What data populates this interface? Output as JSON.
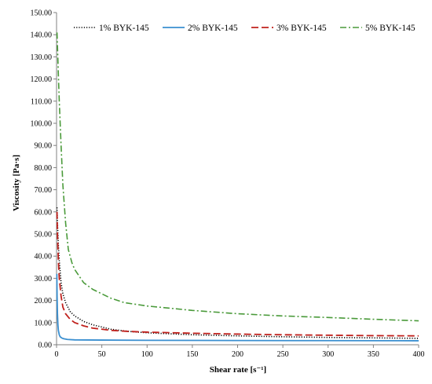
{
  "chart_data": {
    "type": "line",
    "title": "",
    "xlabel": "Shear rate [s⁻¹]",
    "ylabel": "Viscosity [Pa·s]",
    "xlim": [
      0,
      400
    ],
    "ylim": [
      0,
      150
    ],
    "x_ticks": [
      "0",
      "50",
      "100",
      "150",
      "200",
      "250",
      "300",
      "350",
      "400"
    ],
    "y_ticks": [
      "0.00",
      "10.00",
      "20.00",
      "30.00",
      "40.00",
      "50.00",
      "60.00",
      "70.00",
      "80.00",
      "90.00",
      "100.00",
      "110.00",
      "120.00",
      "130.00",
      "140.00",
      "150.00"
    ],
    "grid": false,
    "legend_position": "top",
    "series": [
      {
        "name": "1% BYK-145",
        "color": "#000000",
        "dash": "dotted",
        "points": [
          [
            0.5,
            62
          ],
          [
            1,
            55
          ],
          [
            2,
            45
          ],
          [
            3,
            38
          ],
          [
            5,
            28
          ],
          [
            7,
            23
          ],
          [
            10,
            19
          ],
          [
            15,
            15
          ],
          [
            20,
            13
          ],
          [
            30,
            10.5
          ],
          [
            40,
            9
          ],
          [
            50,
            8
          ],
          [
            60,
            7
          ],
          [
            80,
            6
          ],
          [
            100,
            5.4
          ],
          [
            150,
            4.5
          ],
          [
            200,
            4
          ],
          [
            250,
            3.6
          ],
          [
            300,
            3.3
          ],
          [
            350,
            3.1
          ],
          [
            400,
            2.9
          ]
        ]
      },
      {
        "name": "2% BYK-145",
        "color": "#3a8fd0",
        "dash": "solid",
        "points": [
          [
            0.3,
            32
          ],
          [
            0.6,
            22
          ],
          [
            1,
            14
          ],
          [
            1.5,
            9
          ],
          [
            2,
            6.5
          ],
          [
            3,
            4.5
          ],
          [
            4,
            3.6
          ],
          [
            6,
            3
          ],
          [
            8,
            2.7
          ],
          [
            12,
            2.4
          ],
          [
            20,
            2.2
          ],
          [
            50,
            2.1
          ],
          [
            100,
            2
          ],
          [
            200,
            1.9
          ],
          [
            300,
            1.85
          ],
          [
            400,
            1.8
          ]
        ]
      },
      {
        "name": "3% BYK-145",
        "color": "#c0201c",
        "dash": "dashed",
        "points": [
          [
            0.5,
            60
          ],
          [
            1,
            50
          ],
          [
            2,
            38
          ],
          [
            3,
            30
          ],
          [
            5,
            22
          ],
          [
            7,
            17
          ],
          [
            10,
            14
          ],
          [
            15,
            11.5
          ],
          [
            20,
            10
          ],
          [
            30,
            8.5
          ],
          [
            40,
            7.5
          ],
          [
            60,
            6.5
          ],
          [
            80,
            6
          ],
          [
            100,
            5.7
          ],
          [
            150,
            5.2
          ],
          [
            200,
            4.8
          ],
          [
            250,
            4.5
          ],
          [
            300,
            4.3
          ],
          [
            350,
            4.1
          ],
          [
            400,
            4
          ]
        ]
      },
      {
        "name": "5% BYK-145",
        "color": "#4a9a3a",
        "dash": "dashdot",
        "points": [
          [
            0.5,
            141
          ],
          [
            1,
            135
          ],
          [
            2,
            122
          ],
          [
            3,
            110
          ],
          [
            5,
            90
          ],
          [
            7,
            72
          ],
          [
            10,
            55
          ],
          [
            13,
            43
          ],
          [
            17,
            37
          ],
          [
            20,
            34
          ],
          [
            30,
            28
          ],
          [
            40,
            25
          ],
          [
            50,
            23
          ],
          [
            60,
            21
          ],
          [
            75,
            19
          ],
          [
            100,
            17.5
          ],
          [
            125,
            16.5
          ],
          [
            150,
            15.5
          ],
          [
            200,
            14
          ],
          [
            250,
            13
          ],
          [
            300,
            12.3
          ],
          [
            350,
            11.5
          ],
          [
            400,
            10.8
          ]
        ]
      }
    ]
  }
}
